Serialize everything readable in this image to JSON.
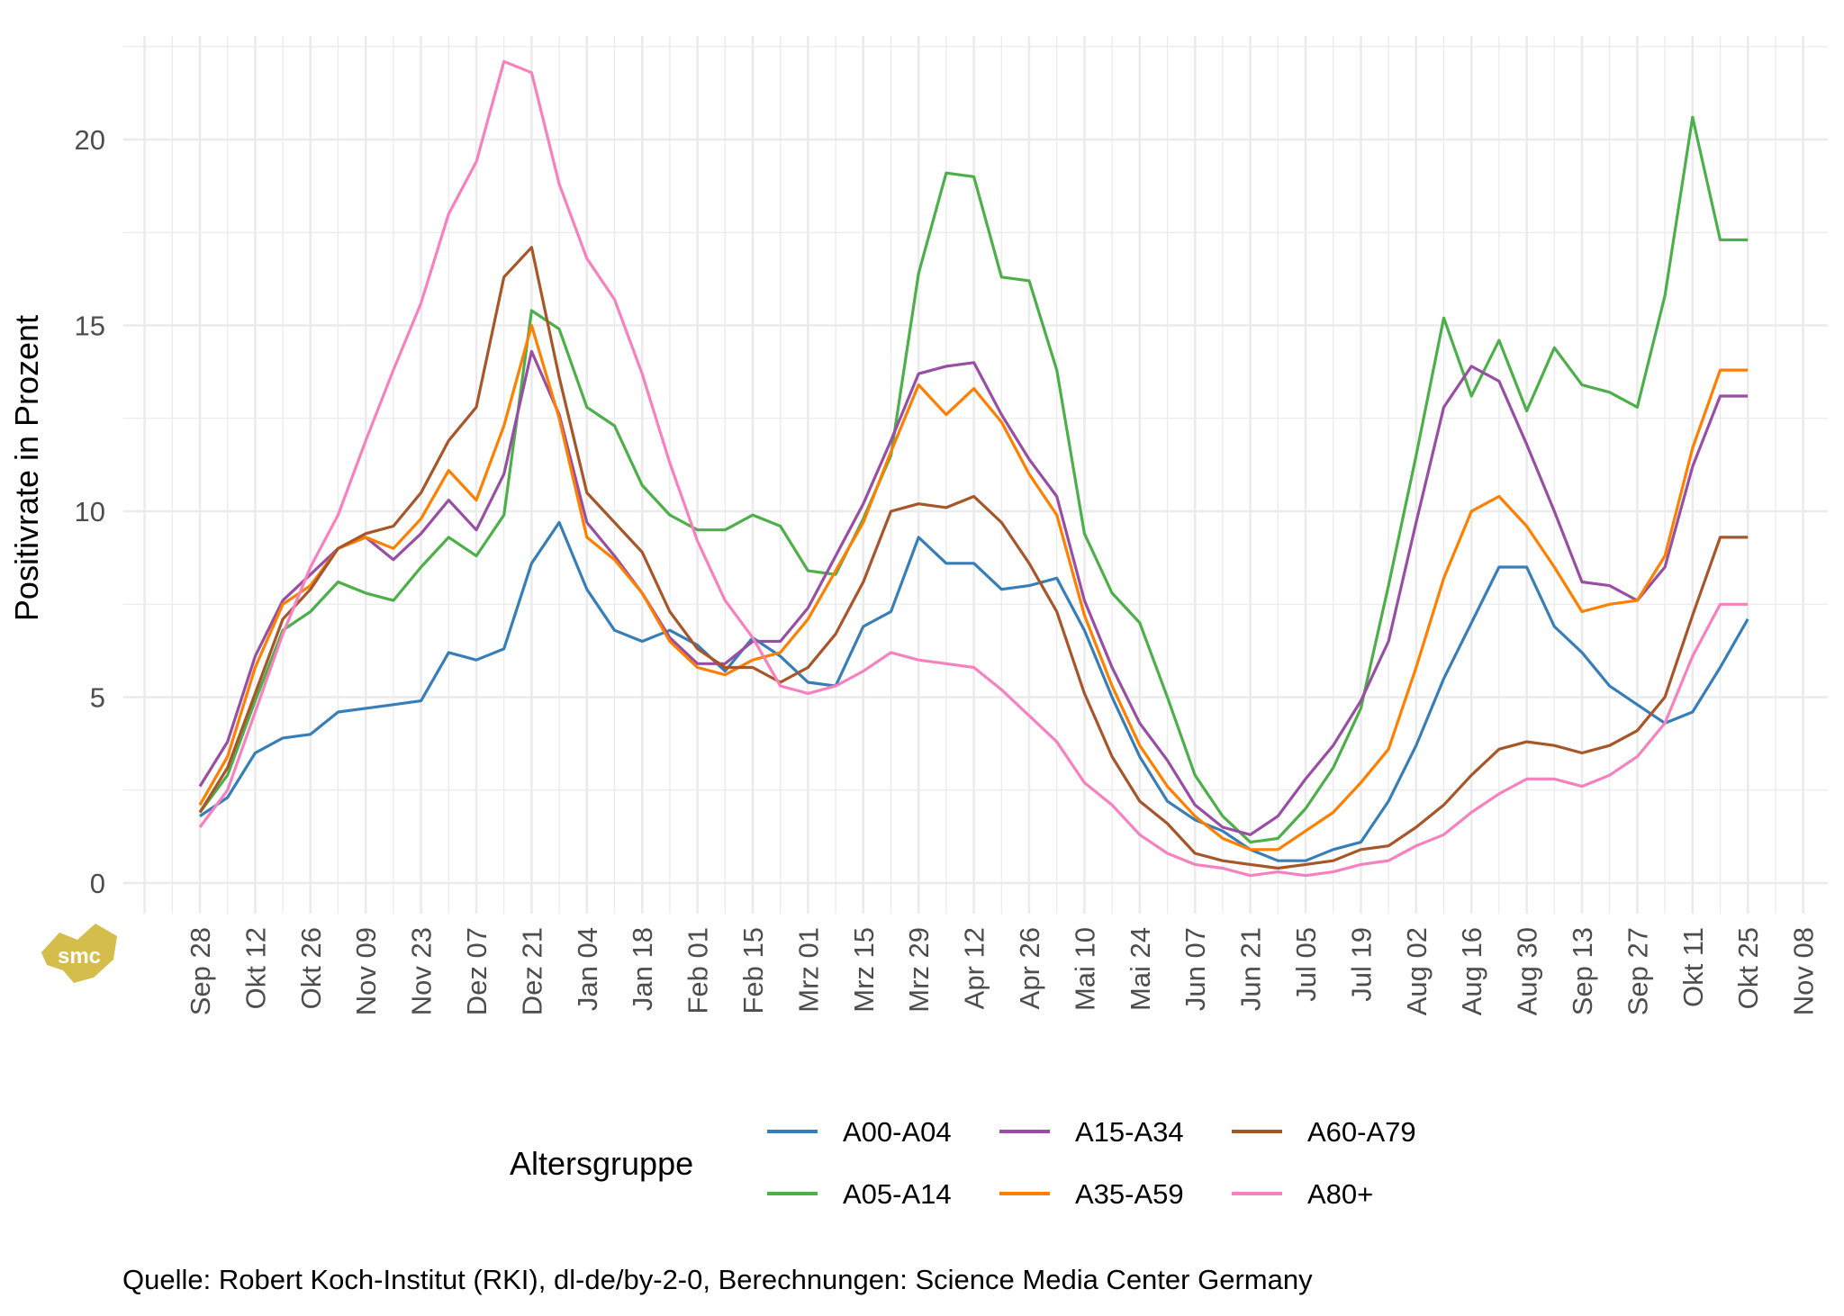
{
  "chart_data": {
    "type": "line",
    "title": "",
    "xlabel": "",
    "ylabel": "Positivrate in Prozent",
    "ylim": [
      0,
      22.5
    ],
    "y_ticks": [
      0,
      5,
      10,
      15,
      20
    ],
    "grid": true,
    "x_start_label": "Sep 28",
    "x_step": "weekly",
    "x_tick_labels": [
      "Sep 28",
      "Okt 12",
      "Okt 26",
      "Nov 09",
      "Nov 23",
      "Dez 07",
      "Dez 21",
      "Jan 04",
      "Jan 18",
      "Feb 01",
      "Feb 15",
      "Mrz 01",
      "Mrz 15",
      "Mrz 29",
      "Apr 12",
      "Apr 26",
      "Mai 10",
      "Mai 24",
      "Jun 07",
      "Jun 21",
      "Jul 05",
      "Jul 19",
      "Aug 02",
      "Aug 16",
      "Aug 30",
      "Sep 13",
      "Sep 27",
      "Okt 11",
      "Okt 25",
      "Nov 08"
    ],
    "x_weeks_range": [
      0,
      58
    ],
    "legend": {
      "title": "Altersgruppe",
      "position": "bottom"
    },
    "series": [
      {
        "name": "A00-A04",
        "color": "#377eb8",
        "values": [
          1.8,
          2.3,
          3.5,
          3.9,
          4.0,
          4.6,
          4.7,
          4.8,
          4.9,
          6.2,
          6.0,
          6.3,
          8.6,
          9.7,
          7.9,
          6.8,
          6.5,
          6.8,
          6.4,
          5.7,
          6.6,
          6.1,
          5.4,
          5.3,
          6.9,
          7.3,
          9.3,
          8.6,
          8.6,
          7.9,
          8.0,
          8.2,
          6.8,
          5.0,
          3.4,
          2.2,
          1.7,
          1.4,
          0.9,
          0.6,
          0.6,
          0.9,
          1.1,
          2.2,
          3.7,
          5.5,
          7.0,
          8.5,
          8.5,
          6.9,
          6.2,
          5.3,
          4.8,
          4.3,
          4.6,
          5.8,
          7.1
        ]
      },
      {
        "name": "A05-A14",
        "color": "#4daf4a",
        "values": [
          1.9,
          2.9,
          4.9,
          6.8,
          7.3,
          8.1,
          7.8,
          7.6,
          8.5,
          9.3,
          8.8,
          9.9,
          15.4,
          14.9,
          12.8,
          12.3,
          10.7,
          9.9,
          9.5,
          9.5,
          9.9,
          9.6,
          8.4,
          8.3,
          9.8,
          11.5,
          16.4,
          19.1,
          19.0,
          16.3,
          16.2,
          13.8,
          9.4,
          7.8,
          7.0,
          5.0,
          2.9,
          1.8,
          1.1,
          1.2,
          2.0,
          3.1,
          4.7,
          8.0,
          11.5,
          15.2,
          13.1,
          14.6,
          12.7,
          14.4,
          13.4,
          13.2,
          12.8,
          15.8,
          20.6,
          17.3,
          17.3
        ]
      },
      {
        "name": "A15-A34",
        "color": "#984ea3",
        "values": [
          2.6,
          3.8,
          6.1,
          7.6,
          8.3,
          9.0,
          9.3,
          8.7,
          9.4,
          10.3,
          9.5,
          11.0,
          14.3,
          12.6,
          9.7,
          8.8,
          7.8,
          6.6,
          5.9,
          5.9,
          6.5,
          6.5,
          7.4,
          8.8,
          10.2,
          11.9,
          13.7,
          13.9,
          14.0,
          12.6,
          11.4,
          10.4,
          7.6,
          5.8,
          4.3,
          3.3,
          2.1,
          1.5,
          1.3,
          1.8,
          2.8,
          3.7,
          4.9,
          6.5,
          9.7,
          12.8,
          13.9,
          13.5,
          11.8,
          10.0,
          8.1,
          8.0,
          7.6,
          8.5,
          11.2,
          13.1,
          13.1
        ]
      },
      {
        "name": "A35-A59",
        "color": "#ff7f00",
        "values": [
          2.1,
          3.4,
          5.8,
          7.5,
          8.0,
          9.0,
          9.3,
          9.0,
          9.8,
          11.1,
          10.3,
          12.3,
          15.0,
          12.5,
          9.3,
          8.7,
          7.8,
          6.5,
          5.8,
          5.6,
          6.0,
          6.2,
          7.1,
          8.4,
          9.7,
          11.6,
          13.4,
          12.6,
          13.3,
          12.4,
          11.0,
          9.9,
          7.2,
          5.3,
          3.7,
          2.6,
          1.8,
          1.2,
          0.9,
          0.9,
          1.4,
          1.9,
          2.7,
          3.6,
          5.8,
          8.2,
          10.0,
          10.4,
          9.6,
          8.5,
          7.3,
          7.5,
          7.6,
          8.8,
          11.7,
          13.8,
          13.8
        ]
      },
      {
        "name": "A60-A79",
        "color": "#a65628",
        "values": [
          1.9,
          3.1,
          5.1,
          7.1,
          7.9,
          9.0,
          9.4,
          9.6,
          10.5,
          11.9,
          12.8,
          16.3,
          17.1,
          13.6,
          10.5,
          9.7,
          8.9,
          7.3,
          6.3,
          5.8,
          5.8,
          5.4,
          5.8,
          6.7,
          8.1,
          10.0,
          10.2,
          10.1,
          10.4,
          9.7,
          8.6,
          7.3,
          5.1,
          3.4,
          2.2,
          1.6,
          0.8,
          0.6,
          0.5,
          0.4,
          0.5,
          0.6,
          0.9,
          1.0,
          1.5,
          2.1,
          2.9,
          3.6,
          3.8,
          3.7,
          3.5,
          3.7,
          4.1,
          5.0,
          7.2,
          9.3,
          9.3
        ]
      },
      {
        "name": "A80+",
        "color": "#f781bf",
        "values": [
          1.5,
          2.5,
          4.6,
          6.7,
          8.5,
          9.9,
          11.9,
          13.8,
          15.6,
          18.0,
          19.4,
          22.1,
          21.8,
          18.8,
          16.8,
          15.7,
          13.7,
          11.3,
          9.2,
          7.6,
          6.6,
          5.3,
          5.1,
          5.3,
          5.7,
          6.2,
          6.0,
          5.9,
          5.8,
          5.2,
          4.5,
          3.8,
          2.7,
          2.1,
          1.3,
          0.8,
          0.5,
          0.4,
          0.2,
          0.3,
          0.2,
          0.3,
          0.5,
          0.6,
          1.0,
          1.3,
          1.9,
          2.4,
          2.8,
          2.8,
          2.6,
          2.9,
          3.4,
          4.3,
          6.1,
          7.5,
          7.5
        ]
      }
    ]
  },
  "caption": "Quelle: Robert Koch-Institut (RKI), dl-de/by-2-0, Berechnungen: Science Media Center Germany",
  "logo": {
    "text": "smc",
    "color": "#d4bd4a"
  }
}
